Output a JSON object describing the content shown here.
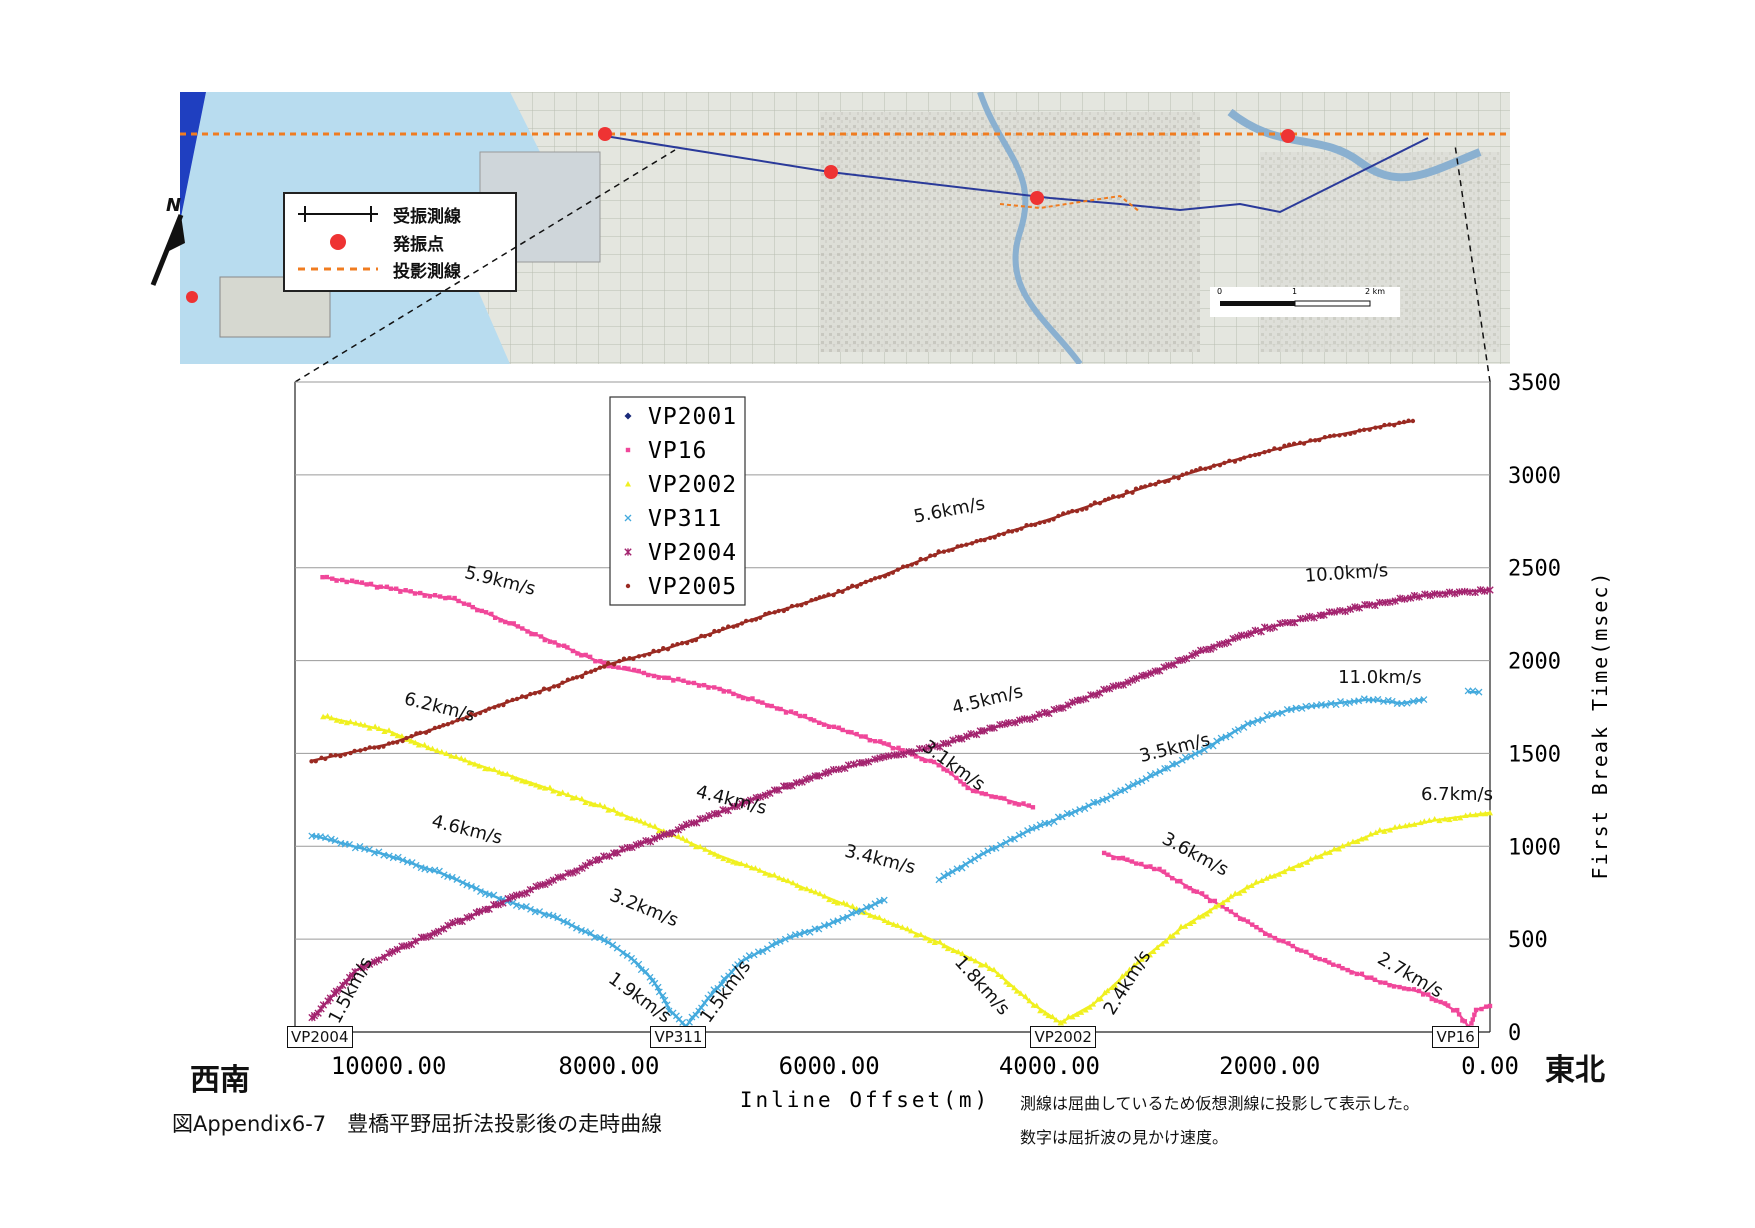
{
  "map": {
    "legend": {
      "receiver_line": "受振測線",
      "shot_point": "発振点",
      "projection_line": "投影測線"
    },
    "north_label": "N",
    "scale": {
      "ticks": [
        "0",
        "1",
        "2 km"
      ]
    },
    "colors": {
      "projection": "#f07c20",
      "shot": "#ee3333",
      "receiver": "#2a3a9a",
      "sea": "#b8dcef",
      "land": "#e4e6df"
    }
  },
  "chart_data": {
    "type": "scatter",
    "xlabel": "Inline Offset(m)",
    "ylabel": "First Break Time(msec)",
    "xlim": [
      10850,
      0
    ],
    "ylim": [
      0,
      3500
    ],
    "x_ticks": [
      "10000.00",
      "8000.00",
      "6000.00",
      "4000.00",
      "2000.00",
      "0.00"
    ],
    "x_tick_values": [
      10000,
      8000,
      6000,
      4000,
      2000,
      0
    ],
    "y_ticks": [
      0,
      500,
      1000,
      1500,
      2000,
      2500,
      3000,
      3500
    ],
    "series": [
      {
        "name": "VP2001",
        "marker": "diamond",
        "color": "#1a2a7a",
        "segments": []
      },
      {
        "name": "VP16",
        "marker": "square",
        "color": "#f0479a",
        "segments": [
          [
            [
              10600,
              2450
            ],
            [
              9400,
              2330
            ],
            [
              8000,
              1970
            ],
            [
              7000,
              1850
            ],
            [
              6000,
              1650
            ],
            [
              5500,
              1550
            ],
            [
              5000,
              1440
            ],
            [
              4700,
              1300
            ],
            [
              4150,
              1210
            ]
          ],
          [
            [
              3500,
              960
            ],
            [
              3000,
              870
            ],
            [
              2500,
              700
            ],
            [
              2000,
              520
            ],
            [
              1500,
              380
            ],
            [
              1000,
              270
            ],
            [
              600,
              210
            ],
            [
              300,
              110
            ],
            [
              170,
              10
            ]
          ],
          [
            [
              170,
              40
            ],
            [
              120,
              120
            ],
            [
              0,
              140
            ]
          ]
        ]
      },
      {
        "name": "VP2002",
        "marker": "triangle",
        "color": "#f0f020",
        "segments": [
          [
            [
              10600,
              1700
            ],
            [
              10000,
              1620
            ],
            [
              9600,
              1520
            ],
            [
              9000,
              1400
            ],
            [
              8500,
              1300
            ],
            [
              8000,
              1200
            ],
            [
              7500,
              1080
            ],
            [
              7000,
              950
            ],
            [
              6500,
              840
            ],
            [
              6000,
              720
            ],
            [
              5500,
              600
            ],
            [
              5000,
              480
            ],
            [
              4500,
              330
            ],
            [
              4150,
              150
            ],
            [
              3900,
              50
            ]
          ],
          [
            [
              3900,
              50
            ],
            [
              3600,
              150
            ],
            [
              3200,
              370
            ],
            [
              2800,
              560
            ],
            [
              2200,
              780
            ],
            [
              1500,
              960
            ],
            [
              1000,
              1080
            ],
            [
              500,
              1140
            ],
            [
              0,
              1180
            ]
          ]
        ]
      },
      {
        "name": "VP311",
        "marker": "x",
        "color": "#44aadd",
        "segments": [
          [
            [
              10700,
              1060
            ],
            [
              10000,
              950
            ],
            [
              9500,
              850
            ],
            [
              9000,
              720
            ],
            [
              8500,
              620
            ],
            [
              8000,
              480
            ],
            [
              7800,
              400
            ],
            [
              7600,
              280
            ],
            [
              7450,
              120
            ],
            [
              7300,
              30
            ]
          ],
          [
            [
              7300,
              30
            ],
            [
              7100,
              180
            ],
            [
              6800,
              380
            ],
            [
              6400,
              500
            ],
            [
              6000,
              580
            ],
            [
              5500,
              710
            ]
          ],
          [
            [
              5000,
              820
            ],
            [
              4600,
              960
            ],
            [
              4200,
              1080
            ],
            [
              3800,
              1180
            ],
            [
              3400,
              1280
            ],
            [
              3000,
              1400
            ],
            [
              2600,
              1520
            ],
            [
              2200,
              1660
            ],
            [
              1800,
              1740
            ],
            [
              1400,
              1770
            ],
            [
              1100,
              1790
            ],
            [
              800,
              1770
            ],
            [
              600,
              1790
            ]
          ],
          [
            [
              200,
              1830
            ],
            [
              100,
              1830
            ]
          ]
        ]
      },
      {
        "name": "VP2004",
        "marker": "star",
        "color": "#a3246f",
        "segments": [
          [
            [
              10700,
              70
            ],
            [
              10500,
              200
            ],
            [
              10300,
              330
            ],
            [
              10000,
              420
            ],
            [
              9500,
              560
            ],
            [
              9000,
              690
            ],
            [
              8500,
              820
            ],
            [
              8000,
              950
            ],
            [
              7500,
              1060
            ],
            [
              7000,
              1180
            ],
            [
              6500,
              1300
            ],
            [
              6000,
              1400
            ],
            [
              5500,
              1480
            ],
            [
              5000,
              1540
            ],
            [
              4500,
              1640
            ],
            [
              4000,
              1720
            ],
            [
              3500,
              1840
            ],
            [
              3000,
              1950
            ],
            [
              2500,
              2080
            ],
            [
              2000,
              2180
            ],
            [
              1500,
              2250
            ],
            [
              1000,
              2310
            ],
            [
              500,
              2360
            ],
            [
              0,
              2380
            ]
          ]
        ]
      },
      {
        "name": "VP2005",
        "marker": "dot",
        "color": "#9a2a22",
        "segments": [
          [
            [
              10700,
              1460
            ],
            [
              10000,
              1550
            ],
            [
              9500,
              1650
            ],
            [
              9000,
              1760
            ],
            [
              8500,
              1860
            ],
            [
              8000,
              1980
            ],
            [
              7500,
              2060
            ],
            [
              7000,
              2160
            ],
            [
              6500,
              2260
            ],
            [
              6000,
              2350
            ],
            [
              5500,
              2460
            ],
            [
              5000,
              2580
            ],
            [
              4500,
              2670
            ],
            [
              4000,
              2760
            ],
            [
              3500,
              2860
            ],
            [
              3000,
              2960
            ],
            [
              2500,
              3050
            ],
            [
              2000,
              3130
            ],
            [
              1500,
              3200
            ],
            [
              1000,
              3260
            ],
            [
              700,
              3290
            ]
          ]
        ]
      }
    ],
    "velocity_annotations": [
      {
        "text": "5.9km/s",
        "x": 9000,
        "y": 2400,
        "angle": 14
      },
      {
        "text": "6.2km/s",
        "x": 9550,
        "y": 1720,
        "angle": 14
      },
      {
        "text": "4.6km/s",
        "x": 9300,
        "y": 1060,
        "angle": 14
      },
      {
        "text": "1.5km/s",
        "x": 10300,
        "y": 210,
        "angle": -62
      },
      {
        "text": "3.2km/s",
        "x": 7700,
        "y": 640,
        "angle": 22
      },
      {
        "text": "1.9km/s",
        "x": 7750,
        "y": 160,
        "angle": 36
      },
      {
        "text": "1.5km/s",
        "x": 6900,
        "y": 200,
        "angle": -54
      },
      {
        "text": "4.4km/s",
        "x": 6900,
        "y": 1220,
        "angle": 14
      },
      {
        "text": "3.4km/s",
        "x": 5550,
        "y": 900,
        "angle": 14
      },
      {
        "text": "3.1km/s",
        "x": 4900,
        "y": 1410,
        "angle": 36
      },
      {
        "text": "4.5km/s",
        "x": 4550,
        "y": 1760,
        "angle": -14
      },
      {
        "text": "1.8km/s",
        "x": 4650,
        "y": 230,
        "angle": 48
      },
      {
        "text": "2.4km/s",
        "x": 3250,
        "y": 250,
        "angle": -58
      },
      {
        "text": "3.5km/s",
        "x": 2850,
        "y": 1500,
        "angle": -14
      },
      {
        "text": "3.6km/s",
        "x": 2700,
        "y": 930,
        "angle": 28
      },
      {
        "text": "5.6km/s",
        "x": 4900,
        "y": 2780,
        "angle": -11
      },
      {
        "text": "10.0km/s",
        "x": 1300,
        "y": 2440,
        "angle": -4
      },
      {
        "text": "11.0km/s",
        "x": 1000,
        "y": 1880,
        "angle": 0
      },
      {
        "text": "6.7km/s",
        "x": 300,
        "y": 1250,
        "angle": 0
      },
      {
        "text": "2.7km/s",
        "x": 750,
        "y": 280,
        "angle": 30
      }
    ],
    "vp_labels": [
      {
        "text": "VP2004",
        "x": 10650
      },
      {
        "text": "VP311",
        "x": 7350
      },
      {
        "text": "VP2002",
        "x": 3900
      },
      {
        "text": "VP16",
        "x": 250
      }
    ],
    "legend_position": "top-left"
  },
  "directions": {
    "west": "西南",
    "east": "東北"
  },
  "caption": {
    "figure_title": "図Appendix6-7　豊橋平野屈折法投影後の走時曲線",
    "note_1": "測線は屈曲しているため仮想測線に投影して表示した。",
    "note_2": "数字は屈折波の見かけ速度。"
  }
}
